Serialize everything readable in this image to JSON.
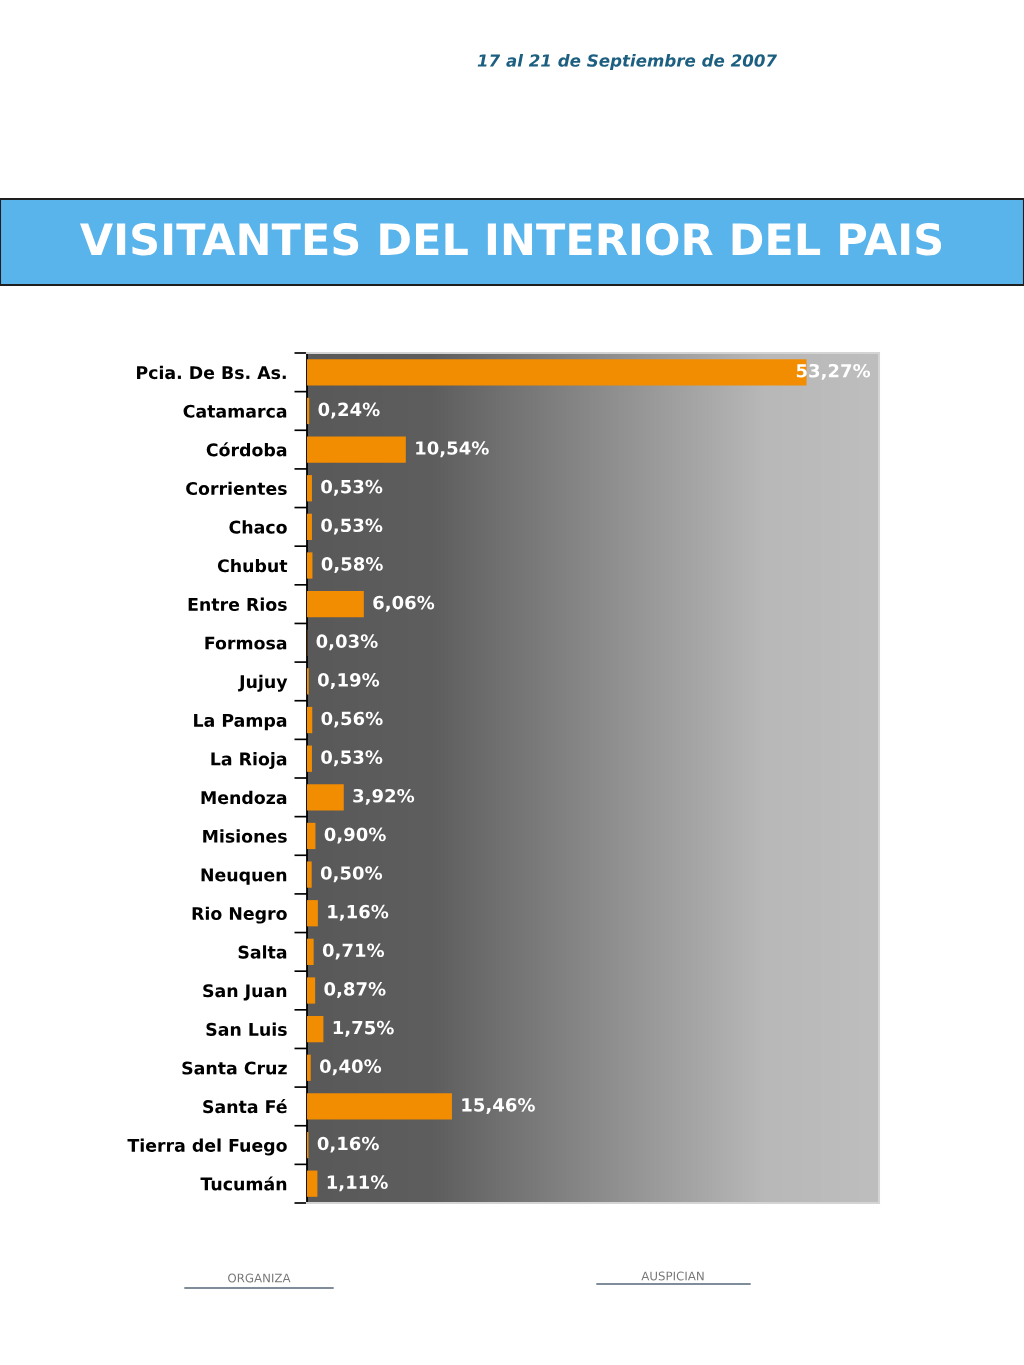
{
  "chart_data": {
    "type": "bar",
    "orientation": "horizontal",
    "title": "VISITANTES DEL INTERIOR DEL PAIS",
    "categories": [
      "Pcia. De Bs. As.",
      "Catamarca",
      "Córdoba",
      "Corrientes",
      "Chaco",
      "Chubut",
      "Entre Rios",
      "Formosa",
      "Jujuy",
      "La Pampa",
      "La Rioja",
      "Mendoza",
      "Misiones",
      "Neuquen",
      "Rio Negro",
      "Salta",
      "San Juan",
      "San Luis",
      "Santa Cruz",
      "Santa Fé",
      "Tierra del Fuego",
      "Tucumán"
    ],
    "values": [
      53.27,
      0.24,
      10.54,
      0.53,
      0.53,
      0.58,
      6.06,
      0.03,
      0.19,
      0.56,
      0.53,
      3.92,
      0.9,
      0.5,
      1.16,
      0.71,
      0.87,
      1.75,
      0.4,
      15.46,
      0.16,
      1.11
    ],
    "value_labels": [
      "53,27%",
      "0,24%",
      "10,54%",
      "0,53%",
      "0,53%",
      "0,58%",
      "6,06%",
      "0,03%",
      "0,19%",
      "0,56%",
      "0,53%",
      "3,92%",
      "0,90%",
      "0,50%",
      "1,16%",
      "0,71%",
      "0,87%",
      "1,75%",
      "0,40%",
      "15,46%",
      "0,16%",
      "1,11%"
    ],
    "color": "#f28c00",
    "xlim": [
      0,
      61
    ],
    "tick_labels": "y",
    "annotations": [
      "17 al 21 de Septiembre de 2007",
      "ORGANIZA",
      "AUSPICIAN"
    ]
  }
}
